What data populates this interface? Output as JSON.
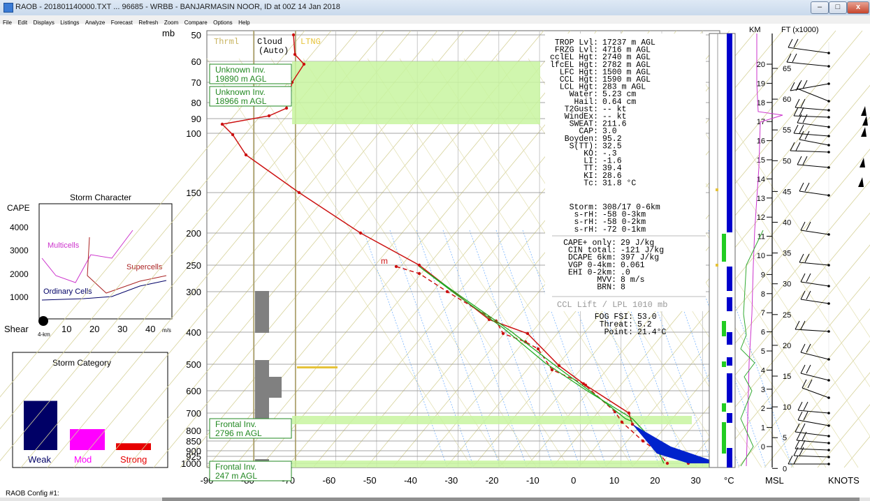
{
  "window": {
    "title": "RAOB - 201801140000.TXT ... 96685 - WRBB - BANJARMASIN NOOR, ID at 00Z 14 Jan 2018",
    "minimize": "–",
    "maximize": "□",
    "close": "x"
  },
  "menu": [
    "File",
    "Edit",
    "Displays",
    "Listings",
    "Analyze",
    "Forecast",
    "Refresh",
    "Zoom",
    "Compare",
    "Options",
    "Help"
  ],
  "storm_character": {
    "title": "Storm Character",
    "cape_label": "CAPE",
    "cape_ticks": [
      "4000",
      "3000",
      "2000",
      "1000"
    ],
    "shear_label": "Shear",
    "shear_sub": "4-km",
    "shear_ticks": [
      "10",
      "20",
      "30",
      "40"
    ],
    "shear_unit": "m/s",
    "labels": {
      "multicells": "Multicells",
      "supercells": "Supercells",
      "ordinary": "Ordinary Cells"
    }
  },
  "storm_category": {
    "title": "Storm Category",
    "bars": [
      {
        "label": "Weak",
        "value": 0.94,
        "color": "#000066"
      },
      {
        "label": "Mod",
        "value": 0.4,
        "color": "#ff00ff"
      },
      {
        "label": "Strong",
        "value": 0.13,
        "color": "#e60000"
      }
    ]
  },
  "skewt": {
    "pressure_unit": "mb",
    "pressure_labels": [
      "50",
      "60",
      "70",
      "80",
      "90",
      "100",
      "150",
      "200",
      "250",
      "300",
      "400",
      "500",
      "600",
      "700",
      "800",
      "850",
      "900",
      "925",
      "1000"
    ],
    "temp_labels": [
      "-90",
      "-80",
      "-70",
      "-60",
      "-50",
      "-40",
      "-30",
      "-20",
      "-10",
      "0",
      "10",
      "20",
      "30"
    ],
    "temp_unit": "°C",
    "column_thrml": "Thrml",
    "column_cloud": "Cloud",
    "column_cloud_sub": "(Auto)",
    "column_ltng": "LTNG",
    "inversions": [
      {
        "name": "Unknown Inv.",
        "height": "19890 m AGL"
      },
      {
        "name": "Unknown Inv.",
        "height": "18966 m AGL"
      },
      {
        "name": "Frontal Inv.",
        "height": "2796 m AGL"
      },
      {
        "name": "Frontal Inv.",
        "height": "247 m AGL"
      }
    ],
    "m_marker": "m",
    "indices_1": [
      [
        "TROP Lvl:",
        "17237 m AGL"
      ],
      [
        "FRZG Lvl:",
        "4716 m AGL"
      ],
      [
        "cclEL Hgt:",
        "2740 m AGL"
      ],
      [
        "lfcEL Hgt:",
        "2782 m AGL"
      ],
      [
        "LFC Hgt:",
        "1500 m AGL"
      ],
      [
        "CCL Hgt:",
        "1590 m AGL"
      ],
      [
        "LCL Hgt:",
        "283 m AGL"
      ],
      [
        "Water:",
        "5.23 cm"
      ],
      [
        "Hail:",
        "0.64 cm"
      ],
      [
        "T2Gust:",
        "-- kt"
      ],
      [
        "WindEx:",
        "-- kt"
      ],
      [
        "SWEAT:",
        "211.6"
      ],
      [
        "CAP:",
        "3.0"
      ],
      [
        "Boyden:",
        "95.2"
      ],
      [
        "S(TT):",
        "32.5"
      ],
      [
        "KO:",
        "-.3"
      ],
      [
        "LI:",
        "-1.6"
      ],
      [
        "TT:",
        "39.4"
      ],
      [
        "KI:",
        "28.6"
      ],
      [
        "Tc:",
        "31.8 °C"
      ]
    ],
    "indices_2": [
      [
        "Storm:",
        "308/17 0-6km"
      ],
      [
        "s-rH:",
        "-58  0-3km"
      ],
      [
        "s-rH:",
        "-58  0-2km"
      ],
      [
        "s-rH:",
        "-72  0-1km"
      ]
    ],
    "indices_3": [
      [
        "CAPE+ only:",
        "29 J/kg"
      ],
      [
        "CIN total:",
        "-121 J/kg"
      ],
      [
        "DCAPE 6km:",
        "397 J/kg"
      ],
      [
        "VGP 0-4km:",
        "0.061"
      ],
      [
        "EHI 0-2km:",
        ".0"
      ],
      [
        "MVV:",
        "8 m/s"
      ],
      [
        "BRN:",
        "8"
      ]
    ],
    "ccl_lift": "CCL Lift / LPL 1010 mb",
    "fog": [
      [
        "FOG FSI:",
        "53.0"
      ],
      [
        "Threat:",
        "5.2"
      ],
      [
        "Point:",
        "21.4°C"
      ]
    ]
  },
  "height_scale": {
    "km_label": "KM",
    "ft_label": "FT (x1000)",
    "km_ticks": [
      "20",
      "19",
      "18",
      "17",
      "16",
      "15",
      "14",
      "13",
      "12",
      "11",
      "10",
      "9",
      "8",
      "7",
      "6",
      "5",
      "4",
      "3",
      "2",
      "1",
      "0"
    ],
    "ft_ticks": [
      "65",
      "60",
      "55",
      "50",
      "45",
      "40",
      "35",
      "30",
      "25",
      "20",
      "15",
      "10",
      "5",
      "0"
    ],
    "msl_label": "MSL",
    "knots_label": "KNOTS"
  },
  "status": {
    "config": "RAOB Config #1:"
  },
  "colors": {
    "temp": "#cc1111",
    "inversion": "#c8f5a0",
    "dry_adiabat": "#d4d09a",
    "mixing_ratio": "#66aaff",
    "cloud": "#808080",
    "blue_col": "#0000cc",
    "green_col": "#22cc22"
  }
}
